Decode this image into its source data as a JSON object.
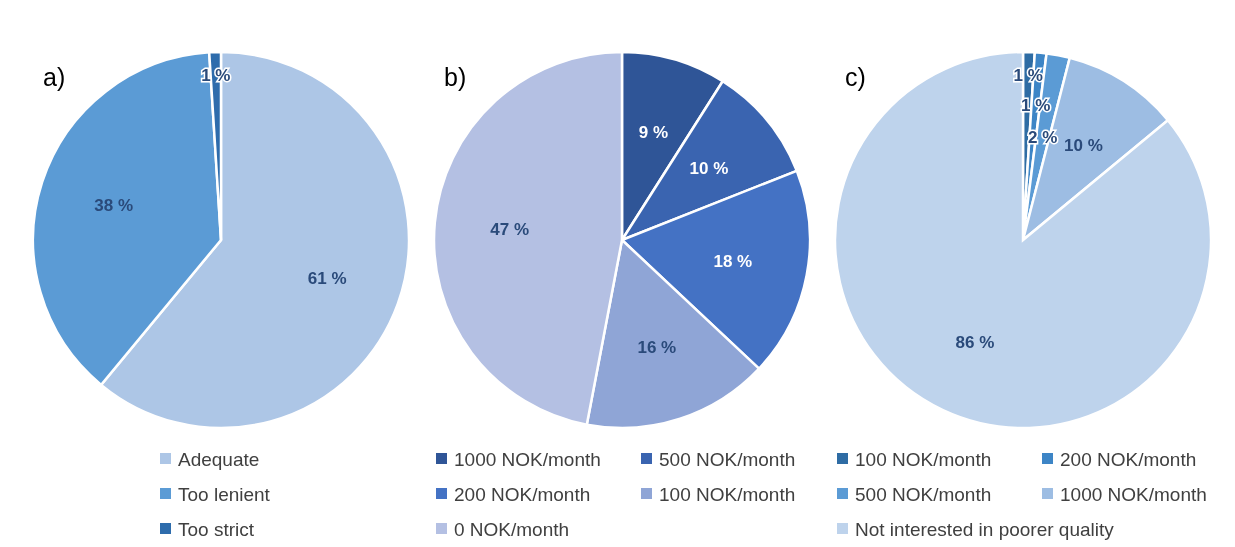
{
  "chart_data": [
    {
      "type": "pie",
      "title": "a)",
      "categories": [
        "Adequate",
        "Too lenient",
        "Too strict"
      ],
      "values": [
        61,
        38,
        1
      ],
      "colors": [
        "#adc6e6",
        "#5b9bd5",
        "#2e6cac"
      ],
      "value_labels": [
        "61 %",
        "38 %",
        "1 %"
      ],
      "legend": "bottom"
    },
    {
      "type": "pie",
      "title": "b)",
      "categories": [
        "1000 NOK/month",
        "500 NOK/month",
        "200 NOK/month",
        "100 NOK/month",
        "0 NOK/month"
      ],
      "values": [
        9,
        10,
        18,
        16,
        47
      ],
      "colors": [
        "#2f5597",
        "#3a64b0",
        "#4472c4",
        "#8fa5d6",
        "#b4c0e3"
      ],
      "value_labels": [
        "9 %",
        "10 %",
        "18 %",
        "16 %",
        "47 %"
      ],
      "legend": "bottom"
    },
    {
      "type": "pie",
      "title": "c)",
      "categories": [
        "100 NOK/month",
        "200 NOK/month",
        "500 NOK/month",
        "1000 NOK/month",
        "Not interested in poorer quality"
      ],
      "values": [
        1,
        1,
        2,
        10,
        86
      ],
      "colors": [
        "#2e6ca4",
        "#3d85c6",
        "#5b9bd5",
        "#9dbde3",
        "#bed3ec"
      ],
      "value_labels": [
        "1 %",
        "1 %",
        "2 %",
        "10 %",
        "86 %"
      ],
      "legend": "bottom"
    }
  ]
}
